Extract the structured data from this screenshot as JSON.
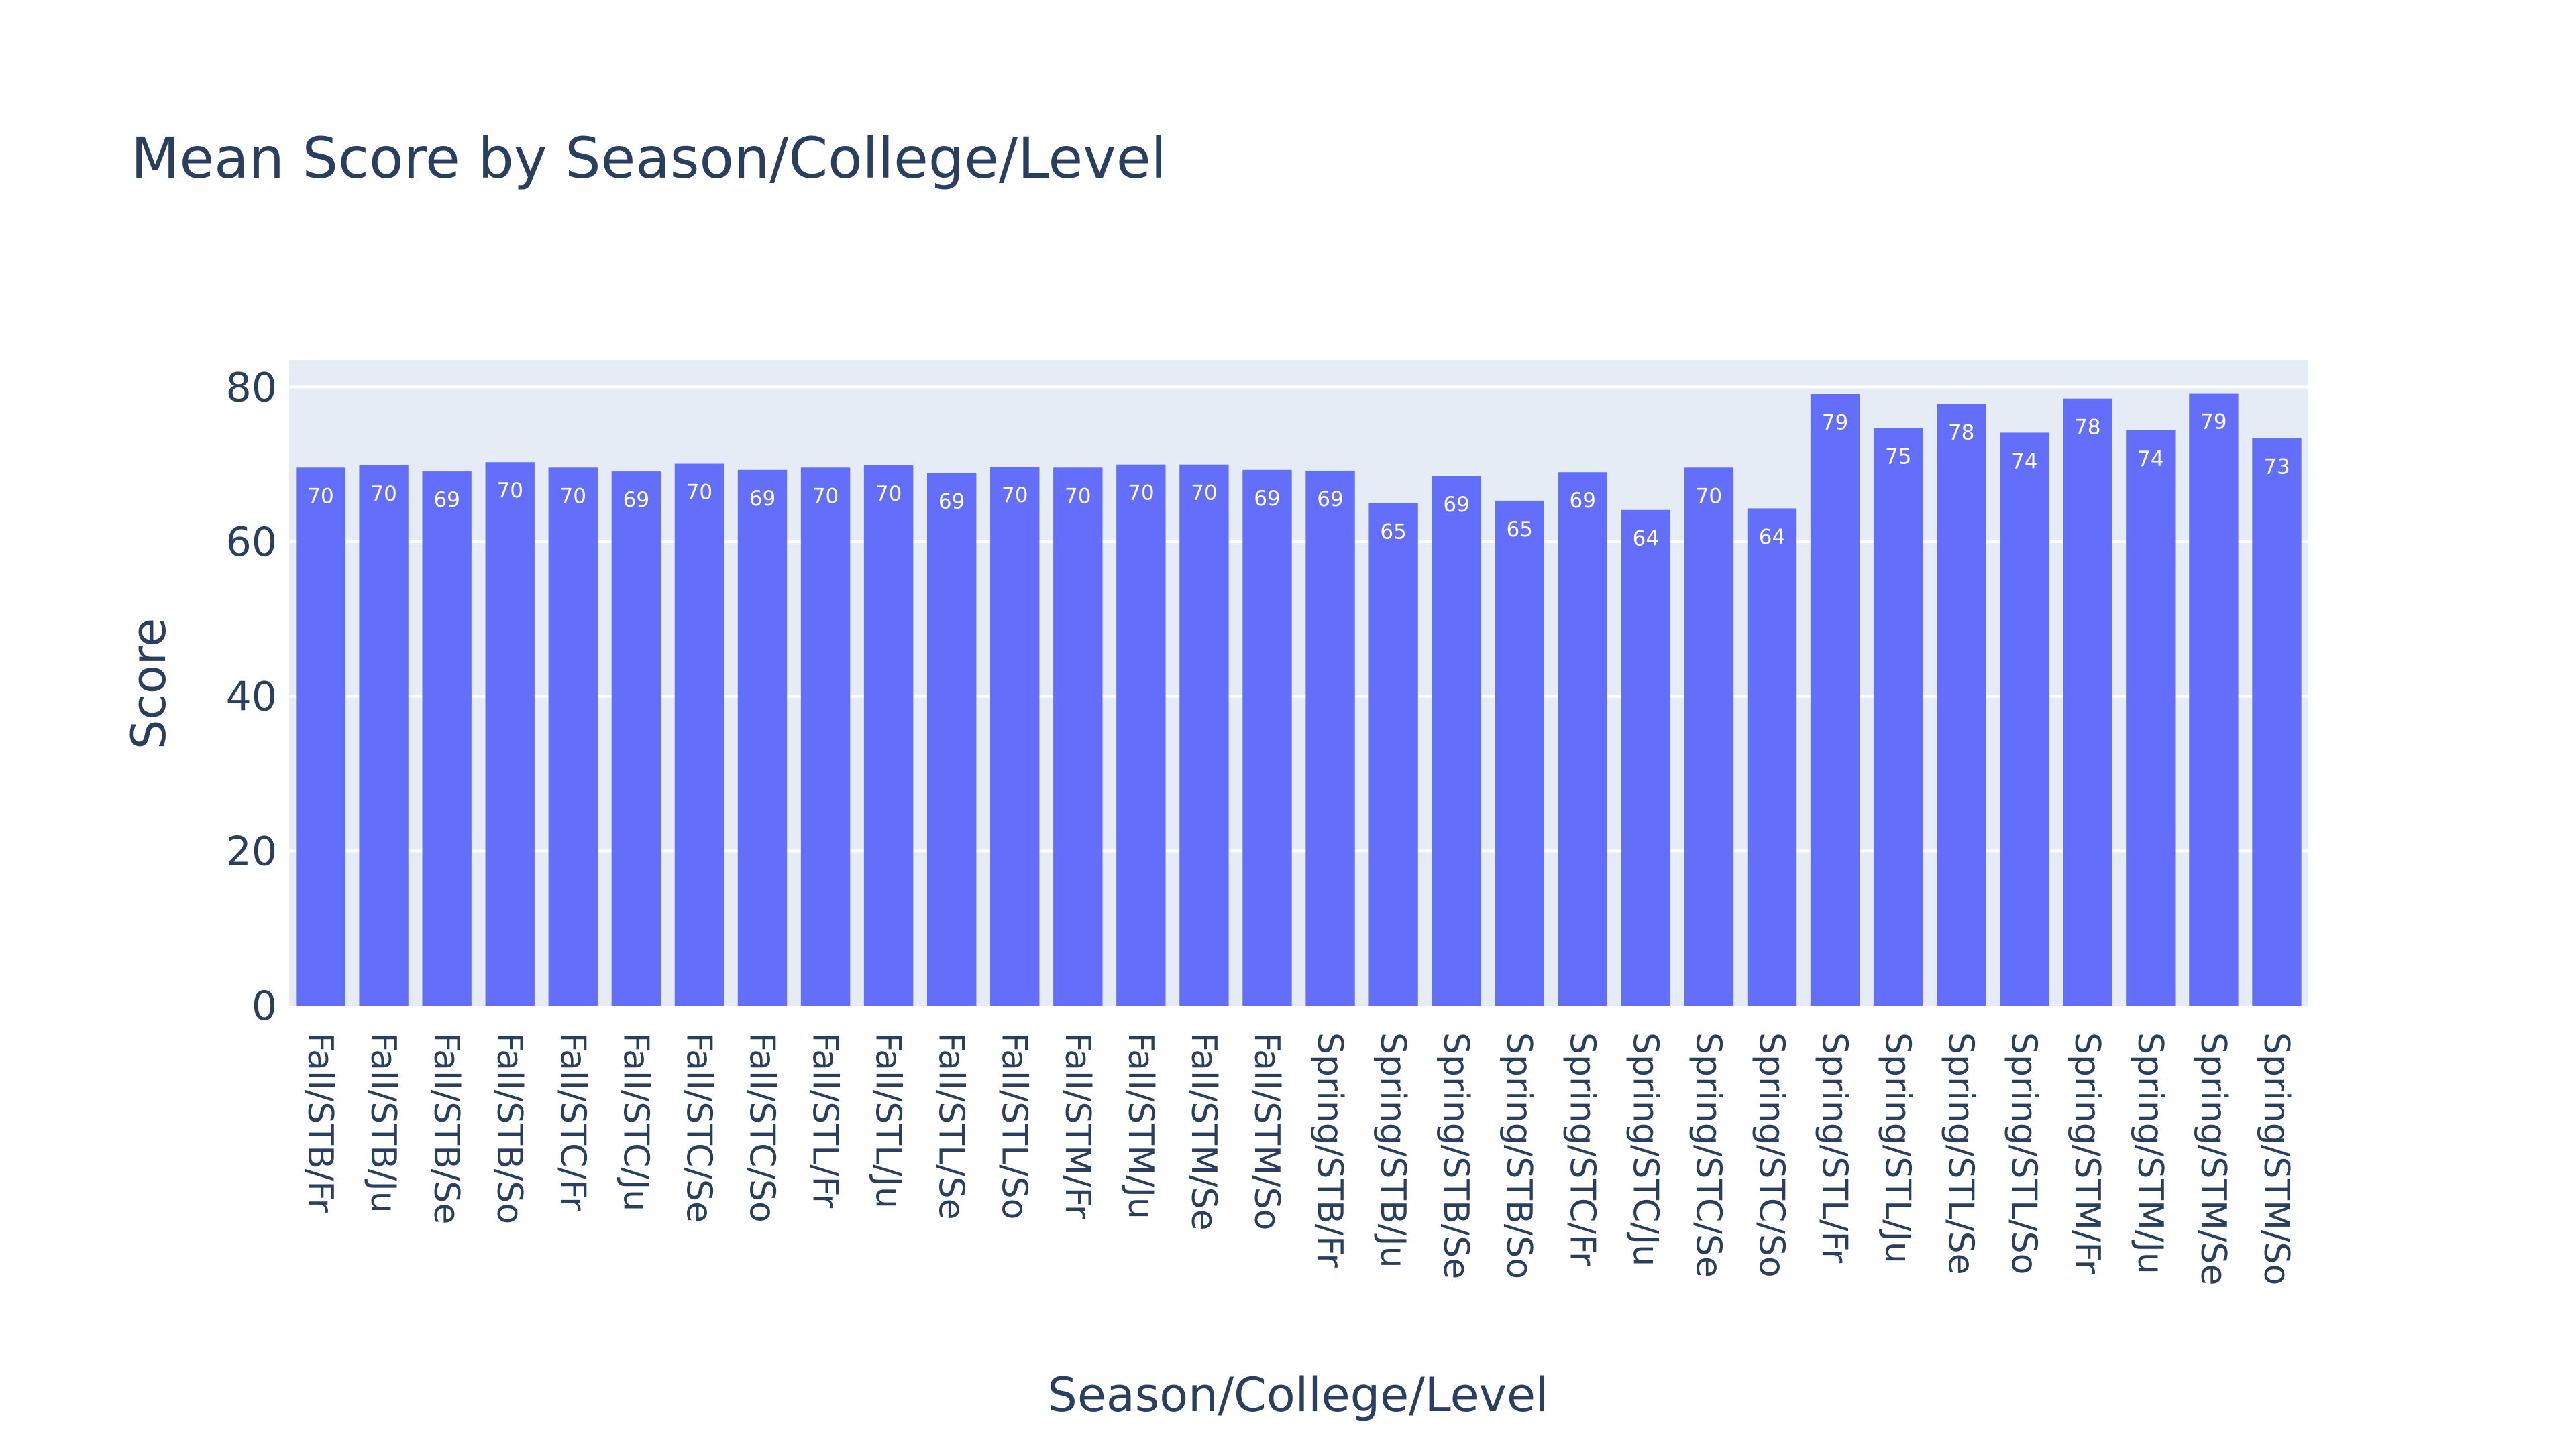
{
  "chart_data": {
    "type": "bar",
    "title": "Mean Score by Season/College/Level",
    "xlabel": "Season/College/Level",
    "ylabel": "Score",
    "ylim": [
      0,
      83.5
    ],
    "yticks": [
      0,
      20,
      40,
      60,
      80
    ],
    "grid": true,
    "bar_color": "#636efa",
    "plot_background": "#e5ecf6",
    "text_color": "#2a3f5f",
    "categories": [
      "Fall/STB/Fr",
      "Fall/STB/Ju",
      "Fall/STB/Se",
      "Fall/STB/So",
      "Fall/STC/Fr",
      "Fall/STC/Ju",
      "Fall/STC/Se",
      "Fall/STC/So",
      "Fall/STL/Fr",
      "Fall/STL/Ju",
      "Fall/STL/Se",
      "Fall/STL/So",
      "Fall/STM/Fr",
      "Fall/STM/Ju",
      "Fall/STM/Se",
      "Fall/STM/So",
      "Spring/STB/Fr",
      "Spring/STB/Ju",
      "Spring/STB/Se",
      "Spring/STB/So",
      "Spring/STC/Fr",
      "Spring/STC/Ju",
      "Spring/STC/Se",
      "Spring/STC/So",
      "Spring/STL/Fr",
      "Spring/STL/Ju",
      "Spring/STL/Se",
      "Spring/STL/So",
      "Spring/STM/Fr",
      "Spring/STM/Ju",
      "Spring/STM/Se",
      "Spring/STM/So"
    ],
    "values": [
      69.6,
      69.9,
      69.1,
      70.3,
      69.6,
      69.1,
      70.1,
      69.3,
      69.6,
      69.9,
      68.9,
      69.7,
      69.6,
      70.0,
      70.0,
      69.3,
      69.2,
      65.0,
      68.5,
      65.3,
      69.0,
      64.1,
      69.6,
      64.3,
      79.1,
      74.7,
      77.8,
      74.1,
      78.5,
      74.4,
      79.2,
      73.4
    ],
    "labels": [
      "70",
      "70",
      "69",
      "70",
      "70",
      "69",
      "70",
      "69",
      "70",
      "70",
      "69",
      "70",
      "70",
      "70",
      "70",
      "69",
      "69",
      "65",
      "69",
      "65",
      "69",
      "64",
      "70",
      "64",
      "79",
      "75",
      "78",
      "74",
      "78",
      "74",
      "79",
      "73"
    ]
  }
}
